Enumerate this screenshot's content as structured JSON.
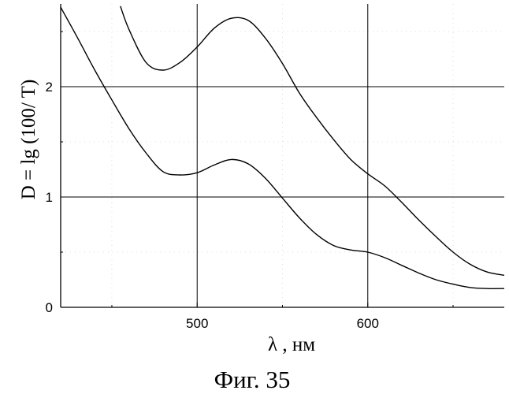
{
  "chart_data": {
    "type": "line",
    "title": "",
    "xlabel": "λ , нм",
    "ylabel": "D = lg (100/ T)",
    "caption": "Фиг. 35",
    "xlim": [
      420,
      680
    ],
    "ylim": [
      0,
      2.75
    ],
    "x_ticks": [
      500,
      600
    ],
    "y_ticks": [
      0,
      1,
      2
    ],
    "x_tick_labels": [
      "500",
      "600"
    ],
    "y_tick_labels": [
      "0",
      "1",
      "2"
    ],
    "grid": true,
    "legend": "none",
    "line_color": "#000000",
    "series": [
      {
        "x": [
          420,
          430,
          440,
          450,
          460,
          470,
          480,
          490,
          500,
          510,
          520,
          530,
          540,
          550,
          560,
          570,
          580,
          590,
          600,
          610,
          620,
          630,
          640,
          650,
          660,
          670,
          680
        ],
        "y": [
          2.72,
          2.44,
          2.15,
          1.88,
          1.62,
          1.4,
          1.23,
          1.2,
          1.22,
          1.29,
          1.34,
          1.3,
          1.17,
          0.99,
          0.81,
          0.66,
          0.56,
          0.52,
          0.5,
          0.45,
          0.38,
          0.31,
          0.25,
          0.21,
          0.18,
          0.17,
          0.17
        ]
      },
      {
        "x": [
          455,
          460,
          470,
          480,
          490,
          500,
          510,
          520,
          530,
          540,
          550,
          560,
          570,
          580,
          590,
          600,
          610,
          620,
          630,
          640,
          650,
          660,
          670,
          680
        ],
        "y": [
          2.73,
          2.52,
          2.22,
          2.15,
          2.22,
          2.36,
          2.53,
          2.62,
          2.6,
          2.44,
          2.21,
          1.94,
          1.72,
          1.52,
          1.34,
          1.21,
          1.1,
          0.95,
          0.79,
          0.64,
          0.5,
          0.39,
          0.32,
          0.29
        ]
      }
    ]
  }
}
